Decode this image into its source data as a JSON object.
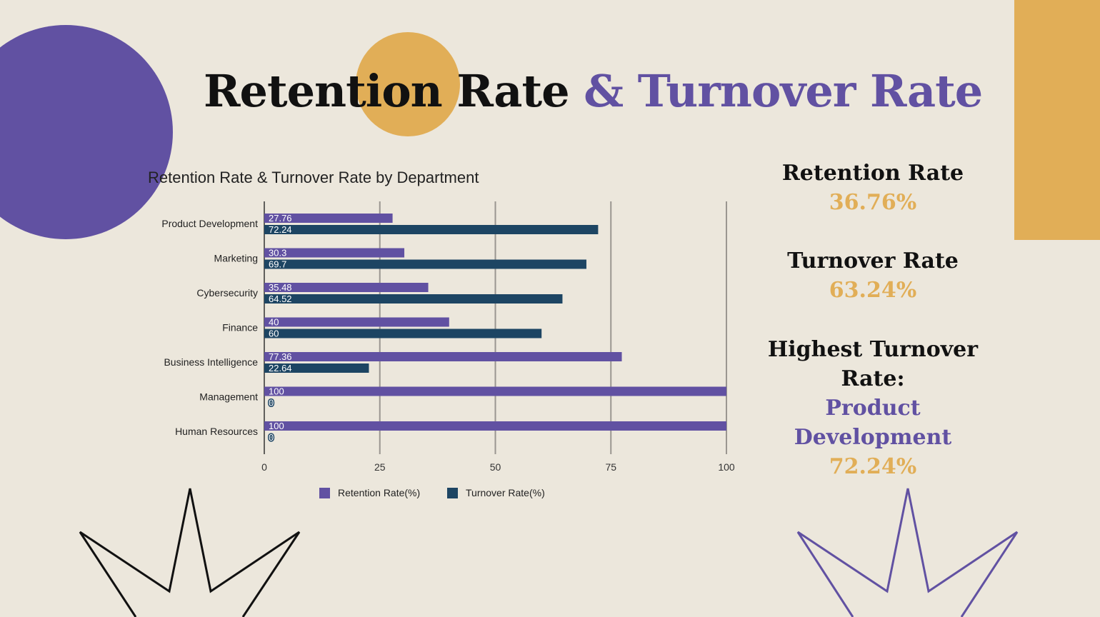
{
  "title": {
    "part1": "Retention Rate",
    "part2": "& Turnover Rate"
  },
  "colors": {
    "background": "#ece7dc",
    "purple": "#6151a2",
    "gold": "#e1ae57",
    "navy": "#1d4563",
    "black": "#111111"
  },
  "stats": {
    "retention_label": "Retention Rate",
    "retention_value": "36.76%",
    "turnover_label": "Turnover Rate",
    "turnover_value": "63.24%",
    "highest_label_line1": "Highest Turnover",
    "highest_label_line2": "Rate:",
    "highest_dept_line1": "Product",
    "highest_dept_line2": "Development",
    "highest_value": "72.24%"
  },
  "chart_data": {
    "type": "bar",
    "orientation": "horizontal",
    "title": "Retention Rate & Turnover Rate by Department",
    "categories": [
      "Product Development",
      "Marketing",
      "Cybersecurity",
      "Finance",
      "Business Intelligence",
      "Management",
      "Human Resources"
    ],
    "series": [
      {
        "name": "Retention Rate(%)",
        "color": "#6151a2",
        "values": [
          27.76,
          30.3,
          35.48,
          40,
          77.36,
          100,
          100
        ],
        "labels": [
          "27.76",
          "30.3",
          "35.48",
          "40",
          "77.36",
          "100",
          "100"
        ]
      },
      {
        "name": "Turnover Rate(%)",
        "color": "#1d4563",
        "values": [
          72.24,
          69.7,
          64.52,
          60,
          22.64,
          0,
          0
        ],
        "labels": [
          "72.24",
          "69.7",
          "64.52",
          "60",
          "22.64",
          "0",
          "0"
        ]
      }
    ],
    "xlim": [
      0,
      100
    ],
    "xticks": [
      "0",
      "25",
      "50",
      "75",
      "100"
    ],
    "grid": true,
    "legend": "bottom"
  }
}
